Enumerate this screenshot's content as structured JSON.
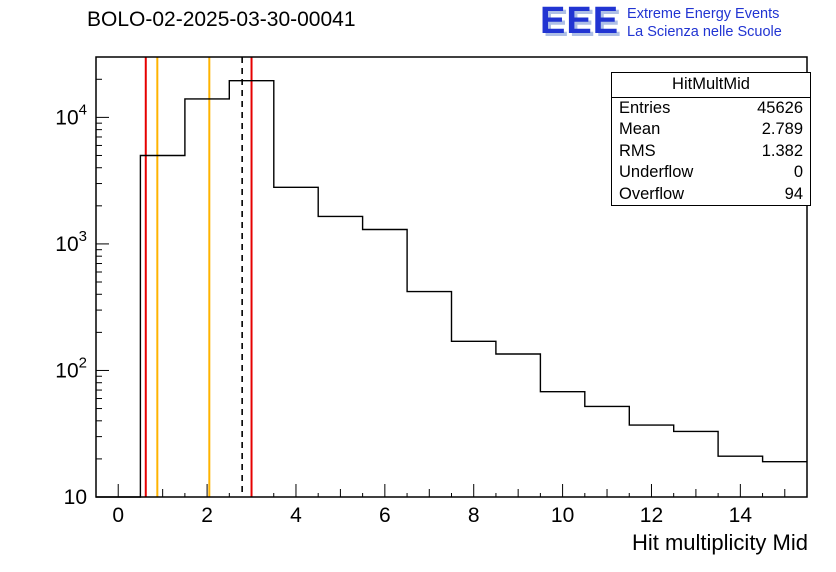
{
  "title": "BOLO-02-2025-03-30-00041",
  "logo": {
    "acronym": "EEE",
    "line1": "Extreme Energy Events",
    "line2": "La Scienza nelle Scuole",
    "color": "#2134d2"
  },
  "stats": {
    "title": "HitMultMid",
    "rows": [
      {
        "label": "Entries",
        "value": "45626"
      },
      {
        "label": "Mean",
        "value": "2.789"
      },
      {
        "label": "RMS",
        "value": "1.382"
      },
      {
        "label": "Underflow",
        "value": "0"
      },
      {
        "label": "Overflow",
        "value": "94"
      }
    ]
  },
  "chart_data": {
    "type": "bar",
    "subtype": "histogram-step",
    "title": "BOLO-02-2025-03-30-00041",
    "xlabel": "Hit multiplicity Mid",
    "ylabel": "",
    "yscale": "log",
    "xlim": [
      -0.5,
      15.5
    ],
    "ylim": [
      10,
      30000
    ],
    "grid": false,
    "legend": "none",
    "bin_width": 1,
    "bin_centers": [
      0,
      1,
      2,
      3,
      4,
      5,
      6,
      7,
      8,
      9,
      10,
      11,
      12,
      13,
      14,
      15
    ],
    "values": [
      0,
      5000,
      14000,
      19500,
      2800,
      1650,
      1300,
      420,
      170,
      135,
      68,
      52,
      37,
      33,
      21,
      19
    ],
    "x_ticks": [
      0,
      2,
      4,
      6,
      8,
      10,
      12,
      14
    ],
    "y_ticks": [
      10,
      100,
      1000,
      10000
    ],
    "marker_lines": {
      "red": [
        0.62,
        3.0
      ],
      "orange": [
        0.88,
        2.05
      ],
      "dashed_black": [
        2.789
      ]
    },
    "colors": {
      "histogram": "#000000",
      "red_line": "#e60000",
      "orange_line": "#ffb300",
      "dashed_line": "#000000"
    }
  }
}
